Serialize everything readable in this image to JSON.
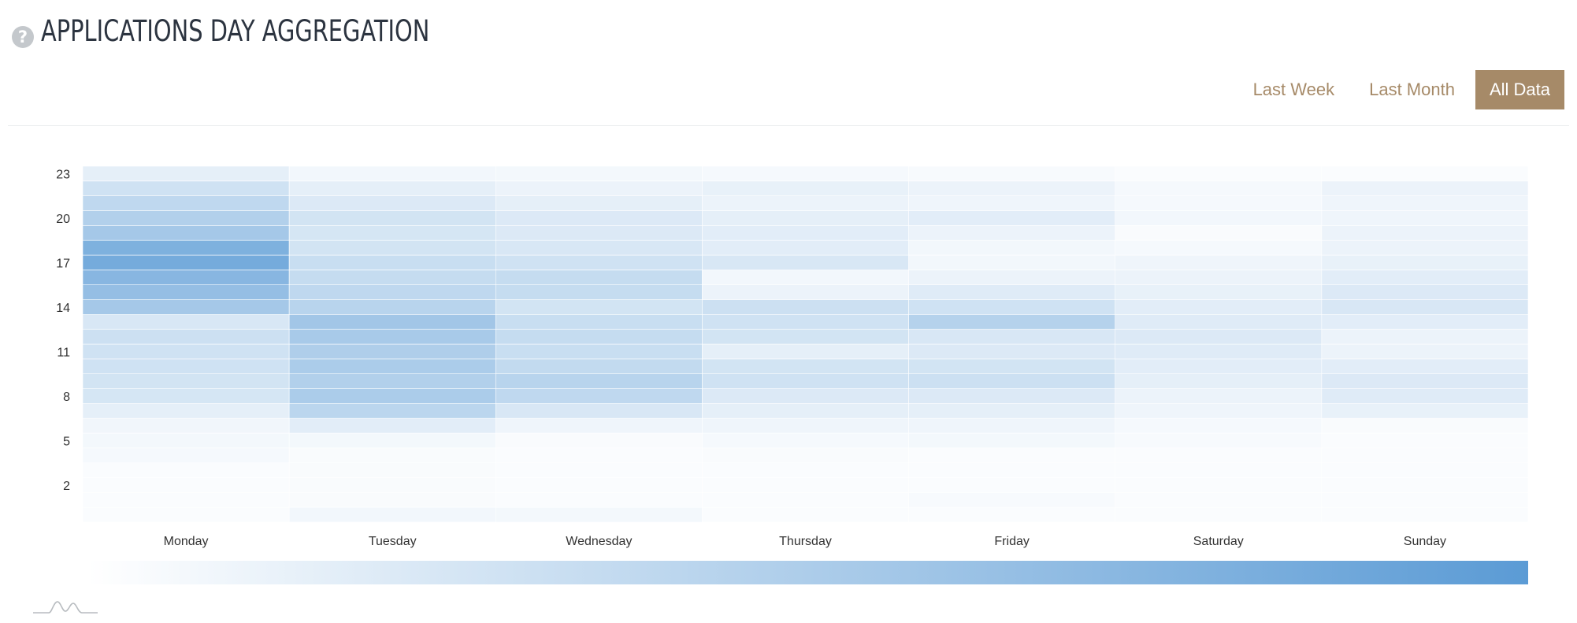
{
  "header": {
    "title": "APPLICATIONS DAY AGGREGATION",
    "help_icon": "question-circle-icon",
    "filters": [
      "Last Week",
      "Last Month",
      "All Data"
    ],
    "active_filter": "All Data"
  },
  "colors": {
    "accent": "#a68a68",
    "heat_low": "#ffffff",
    "heat_high": "#5b9bd5"
  },
  "chart_data": {
    "type": "heatmap",
    "x_categories": [
      "Monday",
      "Tuesday",
      "Wednesday",
      "Thursday",
      "Friday",
      "Saturday",
      "Sunday"
    ],
    "y_range": [
      0,
      23
    ],
    "y_ticks": [
      2,
      5,
      8,
      11,
      14,
      17,
      20,
      23
    ],
    "color_scale": {
      "min": 0,
      "max": 255,
      "ticks": [
        10,
        20,
        30,
        40,
        50,
        60,
        70,
        80,
        90,
        100,
        110,
        120,
        130,
        140,
        150,
        160,
        170,
        180,
        190,
        200,
        210,
        220,
        230,
        240,
        250
      ]
    },
    "values": {
      "Monday": [
        8,
        8,
        8,
        8,
        15,
        18,
        22,
        40,
        65,
        70,
        75,
        75,
        80,
        60,
        140,
        165,
        185,
        215,
        200,
        140,
        120,
        100,
        75,
        40
      ],
      "Tuesday": [
        20,
        10,
        10,
        10,
        10,
        18,
        45,
        105,
        130,
        120,
        130,
        125,
        135,
        145,
        110,
        100,
        90,
        85,
        70,
        65,
        70,
        55,
        40,
        20
      ],
      "Wednesday": [
        18,
        8,
        8,
        8,
        8,
        10,
        25,
        60,
        100,
        110,
        95,
        85,
        90,
        85,
        70,
        90,
        90,
        75,
        60,
        55,
        55,
        40,
        30,
        18
      ],
      "Thursday": [
        8,
        8,
        8,
        8,
        10,
        15,
        25,
        40,
        55,
        75,
        70,
        40,
        70,
        75,
        80,
        30,
        20,
        60,
        45,
        45,
        40,
        30,
        35,
        15
      ],
      "Friday": [
        8,
        12,
        8,
        8,
        8,
        18,
        25,
        40,
        55,
        80,
        70,
        55,
        60,
        115,
        75,
        50,
        30,
        20,
        20,
        30,
        45,
        25,
        30,
        12
      ],
      "Saturday": [
        8,
        8,
        8,
        8,
        8,
        12,
        15,
        25,
        30,
        40,
        45,
        50,
        55,
        50,
        45,
        35,
        30,
        25,
        15,
        10,
        20,
        15,
        15,
        8
      ],
      "Sunday": [
        8,
        8,
        8,
        8,
        8,
        8,
        10,
        35,
        50,
        55,
        45,
        30,
        30,
        45,
        60,
        55,
        45,
        35,
        30,
        30,
        25,
        25,
        30,
        8
      ]
    }
  }
}
